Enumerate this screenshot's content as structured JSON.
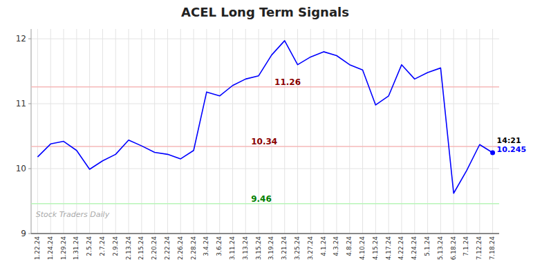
{
  "chart_data": {
    "type": "line",
    "title": "ACEL Long Term Signals",
    "categories": [
      "1.22.24",
      "1.24.24",
      "1.29.24",
      "1.31.24",
      "2.5.24",
      "2.7.24",
      "2.9.24",
      "2.13.24",
      "2.15.24",
      "2.20.24",
      "2.22.24",
      "2.26.24",
      "2.28.24",
      "3.4.24",
      "3.6.24",
      "3.11.24",
      "3.13.24",
      "3.15.24",
      "3.19.24",
      "3.21.24",
      "3.25.24",
      "3.27.24",
      "4.1.24",
      "4.3.24",
      "4.8.24",
      "4.10.24",
      "4.15.24",
      "4.17.24",
      "4.22.24",
      "4.24.24",
      "5.1.24",
      "5.13.24",
      "6.18.24",
      "7.1.24",
      "7.12.24",
      "7.18.24"
    ],
    "values": [
      10.18,
      10.38,
      10.42,
      10.28,
      9.99,
      10.12,
      10.22,
      10.44,
      10.35,
      10.25,
      10.22,
      10.15,
      10.28,
      11.18,
      11.12,
      11.28,
      11.38,
      11.43,
      11.75,
      11.97,
      11.6,
      11.72,
      11.8,
      11.74,
      11.6,
      11.52,
      10.98,
      11.12,
      11.6,
      11.38,
      11.48,
      11.55,
      9.62,
      9.97,
      10.37,
      10.245
    ],
    "color": "blue",
    "marker": "last",
    "reference_lines": [
      {
        "value": 11.26,
        "label": "11.26",
        "color": "#f5b8b8",
        "label_color": "#8b0000"
      },
      {
        "value": 10.34,
        "label": "10.34",
        "color": "#f5b8b8",
        "label_color": "#8b0000"
      },
      {
        "value": 9.46,
        "label": "9.46",
        "color": "#b8f5b8",
        "label_color": "green"
      }
    ],
    "annotations": [
      {
        "text": "14:21",
        "color": "black"
      },
      {
        "text": "10.245",
        "color": "blue"
      }
    ],
    "watermark": "Stock Traders Daily",
    "ylim": [
      9.0,
      12.15
    ],
    "yticks": [
      9,
      10,
      11,
      12
    ],
    "grid": true
  }
}
